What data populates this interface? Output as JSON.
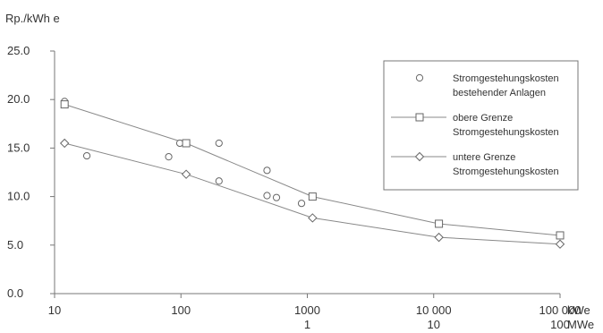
{
  "chart_data": {
    "type": "scatter",
    "ylabel": "Rp./kWh e",
    "xscale": "log",
    "xlim": [
      10,
      100000
    ],
    "ylim": [
      0,
      25
    ],
    "yticks": [
      {
        "value": 0,
        "label": "0.0"
      },
      {
        "value": 5,
        "label": "5.0"
      },
      {
        "value": 10,
        "label": "10.0"
      },
      {
        "value": 15,
        "label": "15.0"
      },
      {
        "value": 20,
        "label": "20.0"
      },
      {
        "value": 25,
        "label": "25.0"
      }
    ],
    "xticks": [
      {
        "value": 10,
        "label": "10",
        "label2": ""
      },
      {
        "value": 100,
        "label": "100",
        "label2": ""
      },
      {
        "value": 1000,
        "label": "1000",
        "label2": "1"
      },
      {
        "value": 10000,
        "label": "10 000",
        "label2": "10"
      },
      {
        "value": 100000,
        "label": "100 000",
        "label2": "100"
      }
    ],
    "xunit_primary": "kWe",
    "xunit_secondary": "MWe",
    "grid": false,
    "legend_position": "top-right",
    "series": [
      {
        "name": "Stromgestehungskosten bestehender Anlagen",
        "legend_lines": [
          "Stromgestehungskosten",
          "bestehender Anlagen"
        ],
        "marker": "circle",
        "line": false,
        "points": [
          {
            "x": 12,
            "y": 19.8
          },
          {
            "x": 18,
            "y": 14.2
          },
          {
            "x": 80,
            "y": 14.1
          },
          {
            "x": 98,
            "y": 15.5
          },
          {
            "x": 200,
            "y": 15.5
          },
          {
            "x": 200,
            "y": 11.6
          },
          {
            "x": 480,
            "y": 12.7
          },
          {
            "x": 480,
            "y": 10.1
          },
          {
            "x": 570,
            "y": 9.9
          },
          {
            "x": 900,
            "y": 9.3
          }
        ]
      },
      {
        "name": "obere Grenze Stromgestehungskosten",
        "legend_lines": [
          "obere Grenze",
          "Stromgestehungskosten"
        ],
        "marker": "square",
        "line": true,
        "points": [
          {
            "x": 12,
            "y": 19.5
          },
          {
            "x": 110,
            "y": 15.5
          },
          {
            "x": 1100,
            "y": 10.0
          },
          {
            "x": 11000,
            "y": 7.2
          },
          {
            "x": 100000,
            "y": 6.0
          }
        ]
      },
      {
        "name": "untere Grenze Stromgestehungskosten",
        "legend_lines": [
          "untere Grenze",
          "Stromgestehungskosten"
        ],
        "marker": "diamond",
        "line": true,
        "points": [
          {
            "x": 12,
            "y": 15.5
          },
          {
            "x": 110,
            "y": 12.3
          },
          {
            "x": 1100,
            "y": 7.8
          },
          {
            "x": 11000,
            "y": 5.8
          },
          {
            "x": 100000,
            "y": 5.1
          }
        ]
      }
    ]
  }
}
